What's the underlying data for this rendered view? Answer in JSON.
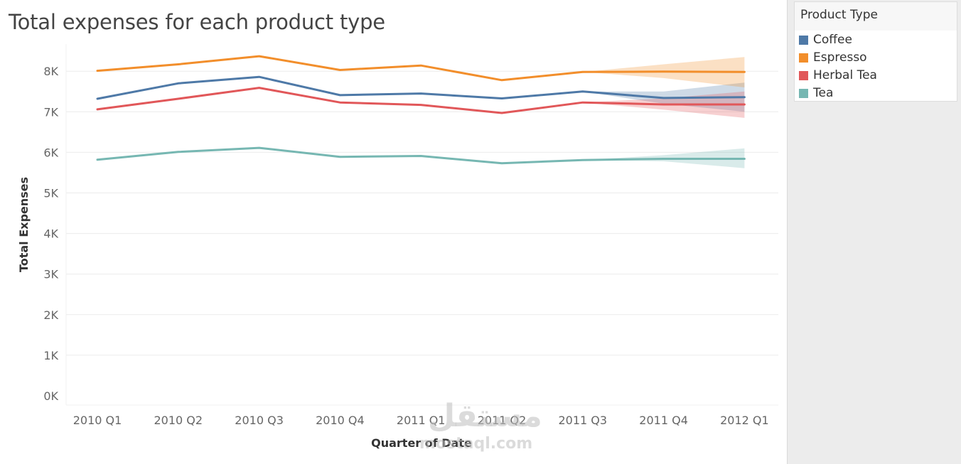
{
  "chart_data": {
    "type": "line",
    "title": "Total expenses for each product type",
    "xlabel": "Quarter of Date",
    "ylabel": "Total Expenses",
    "categories": [
      "2010 Q1",
      "2010 Q2",
      "2010 Q3",
      "2010 Q4",
      "2011 Q1",
      "2011 Q2",
      "2011 Q3",
      "2011 Q4",
      "2012 Q1"
    ],
    "ylim": [
      0,
      8800
    ],
    "yticks": [
      0,
      1000,
      2000,
      3000,
      4000,
      5000,
      6000,
      7000,
      8000
    ],
    "ytick_labels": [
      "0K",
      "1K",
      "2K",
      "3K",
      "4K",
      "5K",
      "6K",
      "7K",
      "8K"
    ],
    "grid": true,
    "legend_position": "right",
    "series": [
      {
        "name": "Coffee",
        "color": "#4e79a7",
        "values": [
          7320,
          7700,
          7860,
          7410,
          7450,
          7330,
          7500,
          7340,
          7360
        ],
        "forecast_band": {
          "from_index": 6,
          "upper": [
            7500,
            7500,
            7720
          ],
          "lower": [
            7500,
            7200,
            7000
          ]
        }
      },
      {
        "name": "Espresso",
        "color": "#f28e2b",
        "values": [
          8010,
          8170,
          8370,
          8030,
          8140,
          7780,
          7980,
          7990,
          7980
        ],
        "forecast_band": {
          "from_index": 6,
          "upper": [
            7980,
            8170,
            8350
          ],
          "lower": [
            7980,
            7830,
            7600
          ]
        }
      },
      {
        "name": "Herbal Tea",
        "color": "#e15759",
        "values": [
          7060,
          7320,
          7590,
          7230,
          7170,
          6970,
          7230,
          7180,
          7180
        ],
        "forecast_band": {
          "from_index": 6,
          "upper": [
            7230,
            7330,
            7500
          ],
          "lower": [
            7230,
            7050,
            6850
          ]
        }
      },
      {
        "name": "Tea",
        "color": "#76b7b2",
        "values": [
          5820,
          6010,
          6110,
          5890,
          5910,
          5730,
          5810,
          5840,
          5840
        ],
        "forecast_band": {
          "from_index": 6,
          "upper": [
            5810,
            5930,
            6100
          ],
          "lower": [
            5810,
            5780,
            5610
          ]
        }
      }
    ]
  },
  "legend": {
    "title": "Product Type"
  },
  "watermark": {
    "arabic": "مستقل",
    "latin": "mostaql.com"
  }
}
